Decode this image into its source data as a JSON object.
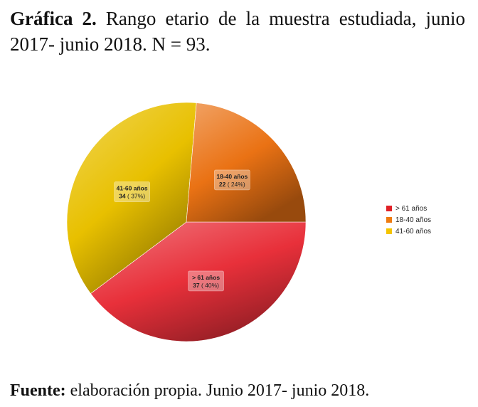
{
  "caption": {
    "label": "Gráfica 2.",
    "text": " Rango etario de la muestra estudiada, junio 2017- junio 2018. N = 93."
  },
  "chart_data": {
    "type": "pie",
    "slices": [
      {
        "name": "> 61 años",
        "value": 37,
        "percent_label": "( 40%)",
        "color": "#e8303a"
      },
      {
        "name": "41-60 años",
        "value": 34,
        "percent_label": "( 37%)",
        "color": "#e8c000"
      },
      {
        "name": "18-40 años",
        "value": 22,
        "percent_label": "( 24%)",
        "color": "#ea7214"
      }
    ],
    "legend": {
      "position": "right",
      "entries": [
        {
          "name": "> 61 años",
          "color": "#e02026"
        },
        {
          "name": "18-40 años",
          "color": "#ee7b10"
        },
        {
          "name": "41-60 años",
          "color": "#f4c400"
        }
      ]
    }
  },
  "source": {
    "label": "Fuente:",
    "text": " elaboración propia. Junio 2017- junio 2018."
  }
}
